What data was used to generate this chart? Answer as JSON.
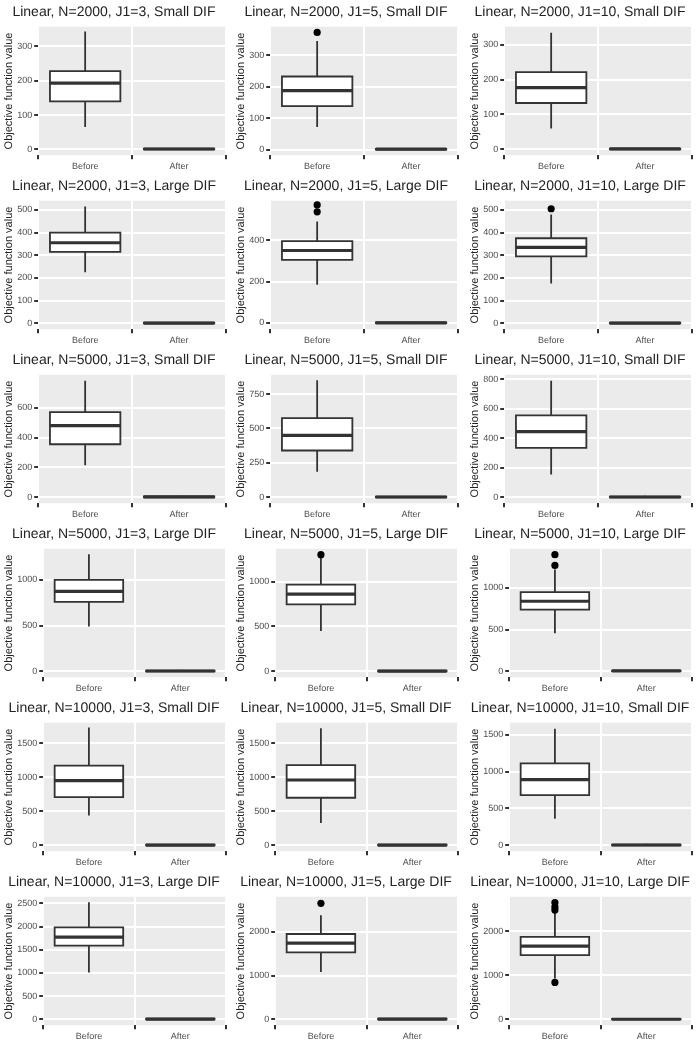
{
  "chart_data": [
    {
      "type": "box",
      "title": "Linear, N=2000, J1=3, Small DIF",
      "ylabel": "Objective function value",
      "categories": [
        "Before",
        "After"
      ],
      "ylim": [
        -17,
        357
      ],
      "yticks": [
        0,
        100,
        200,
        300
      ],
      "grid": true,
      "boxes": [
        {
          "low": 65,
          "q1": 140,
          "median": 193,
          "q3": 228,
          "high": 343
        },
        {
          "low": 0,
          "q1": 0,
          "median": 1,
          "q3": 2,
          "high": 4
        }
      ]
    },
    {
      "type": "box",
      "title": "Linear, N=2000, J1=5, Small DIF",
      "ylabel": "Objective function value",
      "categories": [
        "Before",
        "After"
      ],
      "ylim": [
        -18,
        390
      ],
      "yticks": [
        0,
        100,
        200,
        300
      ],
      "grid": true,
      "boxes": [
        {
          "low": 72,
          "q1": 138,
          "median": 187,
          "q3": 232,
          "high": 345,
          "outliers": [
            372
          ]
        },
        {
          "low": 0,
          "q1": 0,
          "median": 1,
          "q3": 2,
          "high": 4
        }
      ]
    },
    {
      "type": "box",
      "title": "Linear, N=2000, J1=10, Small DIF",
      "ylabel": "Objective function value",
      "categories": [
        "Before",
        "After"
      ],
      "ylim": [
        -17,
        352
      ],
      "yticks": [
        0,
        100,
        200,
        300
      ],
      "grid": true,
      "boxes": [
        {
          "low": 60,
          "q1": 133,
          "median": 177,
          "q3": 222,
          "high": 335
        },
        {
          "low": 0,
          "q1": 0,
          "median": 1,
          "q3": 2,
          "high": 4
        }
      ]
    },
    {
      "type": "box",
      "title": "Linear, N=2000, J1=3, Large DIF",
      "ylabel": "Objective function value",
      "categories": [
        "Before",
        "After"
      ],
      "ylim": [
        -26,
        540
      ],
      "yticks": [
        0,
        100,
        200,
        300,
        400,
        500
      ],
      "grid": true,
      "boxes": [
        {
          "low": 225,
          "q1": 315,
          "median": 355,
          "q3": 400,
          "high": 515
        },
        {
          "low": 0,
          "q1": 0,
          "median": 1,
          "q3": 3,
          "high": 6
        }
      ]
    },
    {
      "type": "box",
      "title": "Linear, N=2000, J1=5, Large DIF",
      "ylabel": "Objective function value",
      "categories": [
        "Before",
        "After"
      ],
      "ylim": [
        -30,
        590
      ],
      "yticks": [
        0,
        200,
        400
      ],
      "grid": true,
      "boxes": [
        {
          "low": 185,
          "q1": 305,
          "median": 350,
          "q3": 395,
          "high": 490,
          "outliers": [
            537,
            570
          ]
        },
        {
          "low": 0,
          "q1": 0,
          "median": 1,
          "q3": 3,
          "high": 6
        }
      ]
    },
    {
      "type": "box",
      "title": "Linear, N=2000, J1=10, Large DIF",
      "ylabel": "Objective function value",
      "categories": [
        "Before",
        "After"
      ],
      "ylim": [
        -26,
        540
      ],
      "yticks": [
        0,
        100,
        200,
        300,
        400,
        500
      ],
      "grid": true,
      "boxes": [
        {
          "low": 175,
          "q1": 295,
          "median": 335,
          "q3": 375,
          "high": 480,
          "outliers": [
            505
          ]
        },
        {
          "low": 0,
          "q1": 0,
          "median": 1,
          "q3": 3,
          "high": 6
        }
      ]
    },
    {
      "type": "box",
      "title": "Linear, N=5000, J1=3, Small DIF",
      "ylabel": "Objective function value",
      "categories": [
        "Before",
        "After"
      ],
      "ylim": [
        -40,
        820
      ],
      "yticks": [
        0,
        200,
        400,
        600
      ],
      "grid": true,
      "boxes": [
        {
          "low": 215,
          "q1": 355,
          "median": 480,
          "q3": 570,
          "high": 780
        },
        {
          "low": 0,
          "q1": 0,
          "median": 2,
          "q3": 5,
          "high": 10
        }
      ]
    },
    {
      "type": "box",
      "title": "Linear, N=5000, J1=5, Small DIF",
      "ylabel": "Objective function value",
      "categories": [
        "Before",
        "After"
      ],
      "ylim": [
        -43,
        890
      ],
      "yticks": [
        0,
        250,
        500,
        750
      ],
      "grid": true,
      "boxes": [
        {
          "low": 185,
          "q1": 340,
          "median": 450,
          "q3": 575,
          "high": 850
        },
        {
          "low": 0,
          "q1": 0,
          "median": 2,
          "q3": 5,
          "high": 10
        }
      ]
    },
    {
      "type": "box",
      "title": "Linear, N=5000, J1=10, Small DIF",
      "ylabel": "Objective function value",
      "categories": [
        "Before",
        "After"
      ],
      "ylim": [
        -40,
        830
      ],
      "yticks": [
        0,
        200,
        400,
        600,
        800
      ],
      "grid": true,
      "boxes": [
        {
          "low": 155,
          "q1": 335,
          "median": 445,
          "q3": 555,
          "high": 790
        },
        {
          "low": 0,
          "q1": 0,
          "median": 2,
          "q3": 5,
          "high": 10
        }
      ]
    },
    {
      "type": "box",
      "title": "Linear, N=5000, J1=3, Large DIF",
      "ylabel": "Objective function value",
      "categories": [
        "Before",
        "After"
      ],
      "ylim": [
        -65,
        1340
      ],
      "yticks": [
        0,
        500,
        1000
      ],
      "grid": true,
      "boxes": [
        {
          "low": 490,
          "q1": 760,
          "median": 875,
          "q3": 1000,
          "high": 1280
        },
        {
          "low": 0,
          "q1": 0,
          "median": 3,
          "q3": 8,
          "high": 15
        }
      ]
    },
    {
      "type": "box",
      "title": "Linear, N=5000, J1=5, Large DIF",
      "ylabel": "Objective function value",
      "categories": [
        "Before",
        "After"
      ],
      "ylim": [
        -65,
        1365
      ],
      "yticks": [
        0,
        500,
        1000
      ],
      "grid": true,
      "boxes": [
        {
          "low": 450,
          "q1": 745,
          "median": 860,
          "q3": 965,
          "high": 1270,
          "outliers": [
            1300
          ]
        },
        {
          "low": 0,
          "q1": 0,
          "median": 3,
          "q3": 8,
          "high": 15
        }
      ]
    },
    {
      "type": "box",
      "title": "Linear, N=5000, J1=10, Large DIF",
      "ylabel": "Objective function value",
      "categories": [
        "Before",
        "After"
      ],
      "ylim": [
        -72,
        1470
      ],
      "yticks": [
        0,
        500,
        1000
      ],
      "grid": true,
      "boxes": [
        {
          "low": 455,
          "q1": 740,
          "median": 840,
          "q3": 950,
          "high": 1220,
          "outliers": [
            1270,
            1400
          ]
        },
        {
          "low": 0,
          "q1": 0,
          "median": 3,
          "q3": 8,
          "high": 15
        }
      ]
    },
    {
      "type": "box",
      "title": "Linear, N=10000, J1=3, Small DIF",
      "ylabel": "Objective function value",
      "categories": [
        "Before",
        "After"
      ],
      "ylim": [
        -85,
        1800
      ],
      "yticks": [
        0,
        500,
        1000,
        1500
      ],
      "grid": true,
      "boxes": [
        {
          "low": 440,
          "q1": 710,
          "median": 950,
          "q3": 1170,
          "high": 1730
        },
        {
          "low": 0,
          "q1": 0,
          "median": 4,
          "q3": 10,
          "high": 20
        }
      ]
    },
    {
      "type": "box",
      "title": "Linear, N=10000, J1=5, Small DIF",
      "ylabel": "Objective function value",
      "categories": [
        "Before",
        "After"
      ],
      "ylim": [
        -85,
        1800
      ],
      "yticks": [
        0,
        500,
        1000,
        1500
      ],
      "grid": true,
      "boxes": [
        {
          "low": 330,
          "q1": 700,
          "median": 960,
          "q3": 1180,
          "high": 1720
        },
        {
          "low": 0,
          "q1": 0,
          "median": 4,
          "q3": 10,
          "high": 20
        }
      ]
    },
    {
      "type": "box",
      "title": "Linear, N=10000, J1=10, Small DIF",
      "ylabel": "Objective function value",
      "categories": [
        "Before",
        "After"
      ],
      "ylim": [
        -80,
        1660
      ],
      "yticks": [
        0,
        500,
        1000,
        1500
      ],
      "grid": true,
      "boxes": [
        {
          "low": 360,
          "q1": 680,
          "median": 890,
          "q3": 1110,
          "high": 1580
        },
        {
          "low": 0,
          "q1": 0,
          "median": 4,
          "q3": 10,
          "high": 20
        }
      ]
    },
    {
      "type": "box",
      "title": "Linear, N=10000, J1=3, Large DIF",
      "ylabel": "Objective function value",
      "categories": [
        "Before",
        "After"
      ],
      "ylim": [
        -125,
        2640
      ],
      "yticks": [
        0,
        500,
        1000,
        1500,
        2000,
        2500
      ],
      "grid": true,
      "boxes": [
        {
          "low": 1010,
          "q1": 1590,
          "median": 1770,
          "q3": 1980,
          "high": 2520
        },
        {
          "low": 0,
          "q1": 0,
          "median": 5,
          "q3": 15,
          "high": 30
        }
      ]
    },
    {
      "type": "box",
      "title": "Linear, N=10000, J1=5, Large DIF",
      "ylabel": "Objective function value",
      "categories": [
        "Before",
        "After"
      ],
      "ylim": [
        -135,
        2800
      ],
      "yticks": [
        0,
        1000,
        2000
      ],
      "grid": true,
      "boxes": [
        {
          "low": 1080,
          "q1": 1530,
          "median": 1740,
          "q3": 1950,
          "high": 2380,
          "outliers": [
            2650
          ]
        },
        {
          "low": 0,
          "q1": 0,
          "median": 5,
          "q3": 15,
          "high": 30
        }
      ]
    },
    {
      "type": "box",
      "title": "Linear, N=10000, J1=10, Large DIF",
      "ylabel": "Objective function value",
      "categories": [
        "Before",
        "After"
      ],
      "ylim": [
        -130,
        2780
      ],
      "yticks": [
        0,
        1000,
        2000
      ],
      "grid": true,
      "boxes": [
        {
          "low": 930,
          "q1": 1460,
          "median": 1660,
          "q3": 1870,
          "high": 2420,
          "outliers": [
            840,
            2480,
            2550,
            2650
          ]
        },
        {
          "low": 0,
          "q1": 0,
          "median": 5,
          "q3": 15,
          "high": 30
        }
      ]
    }
  ]
}
